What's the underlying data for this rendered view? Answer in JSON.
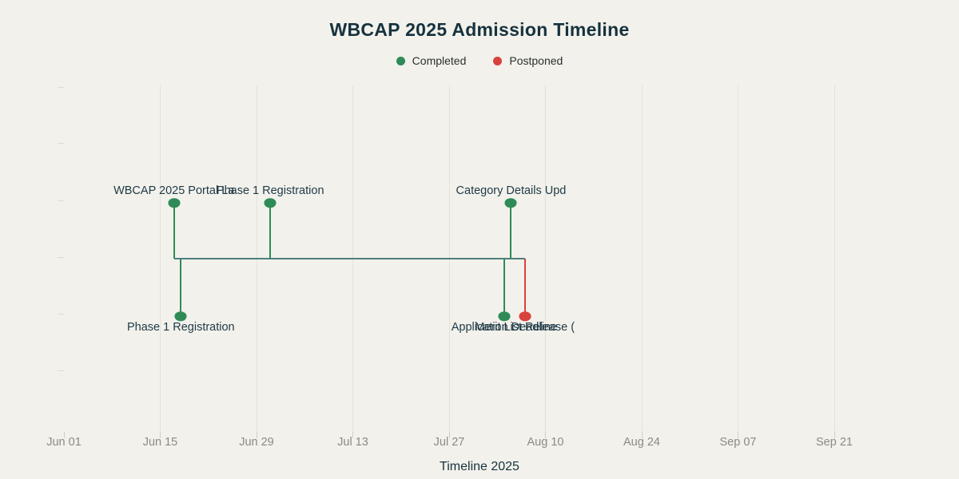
{
  "title": "WBCAP 2025 Admission Timeline",
  "legend": {
    "items": [
      {
        "label": "Completed",
        "status": "completed",
        "color": "#2e8b57"
      },
      {
        "label": "Postponed",
        "status": "postponed",
        "color": "#d9413d"
      }
    ]
  },
  "xlabel": "Timeline 2025",
  "colors": {
    "background": "#f2f1eb",
    "title": "#16323e",
    "completed": "#2e8b57",
    "postponed": "#d9413d",
    "connector": "#4e7f7f",
    "gridline": "#e3e2da",
    "tick_label": "#8b8b82",
    "event_label": "#1f3a47"
  },
  "chart_data": {
    "type": "timeline",
    "title": "WBCAP 2025 Admission Timeline",
    "xlabel": "Timeline 2025",
    "ylabel": "",
    "grid": true,
    "legend_position": "top-center",
    "x_axis": {
      "unit": "date",
      "range": [
        "Jun 01",
        "Oct 03"
      ],
      "ticks": [
        {
          "label": "Jun 01",
          "day": 0,
          "gridline": false
        },
        {
          "label": "Jun 15",
          "day": 14,
          "gridline": true
        },
        {
          "label": "Jun 29",
          "day": 28,
          "gridline": true
        },
        {
          "label": "Jul 13",
          "day": 42,
          "gridline": true
        },
        {
          "label": "Jul 27",
          "day": 56,
          "gridline": true
        },
        {
          "label": "Aug 10",
          "day": 70,
          "gridline": true
        },
        {
          "label": "Aug 24",
          "day": 84,
          "gridline": true
        },
        {
          "label": "Sep 07",
          "day": 98,
          "gridline": true
        },
        {
          "label": "Sep 21",
          "day": 112,
          "gridline": true
        }
      ]
    },
    "y_axis": {
      "labels_visible": false,
      "tick_count": 6
    },
    "events": [
      {
        "label": "WBCAP 2025 Portal La",
        "date_estimate": "Jun 17",
        "day": 16,
        "side": "up",
        "status": "completed"
      },
      {
        "label": "Phase 1 Registration",
        "date_estimate": "Jun 18",
        "day": 17,
        "side": "down",
        "status": "completed"
      },
      {
        "label": "Phase 1 Registration",
        "date_estimate": "Jul 01",
        "day": 30,
        "side": "up",
        "status": "completed"
      },
      {
        "label": "Application Deadline",
        "date_estimate": "Aug 04",
        "day": 64,
        "side": "down",
        "status": "completed"
      },
      {
        "label": "Category Details Upd",
        "date_estimate": "Aug 05",
        "day": 65,
        "side": "up",
        "status": "completed"
      },
      {
        "label": "Merit List Release (",
        "date_estimate": "Aug 07",
        "day": 67,
        "side": "down",
        "status": "postponed"
      }
    ]
  }
}
